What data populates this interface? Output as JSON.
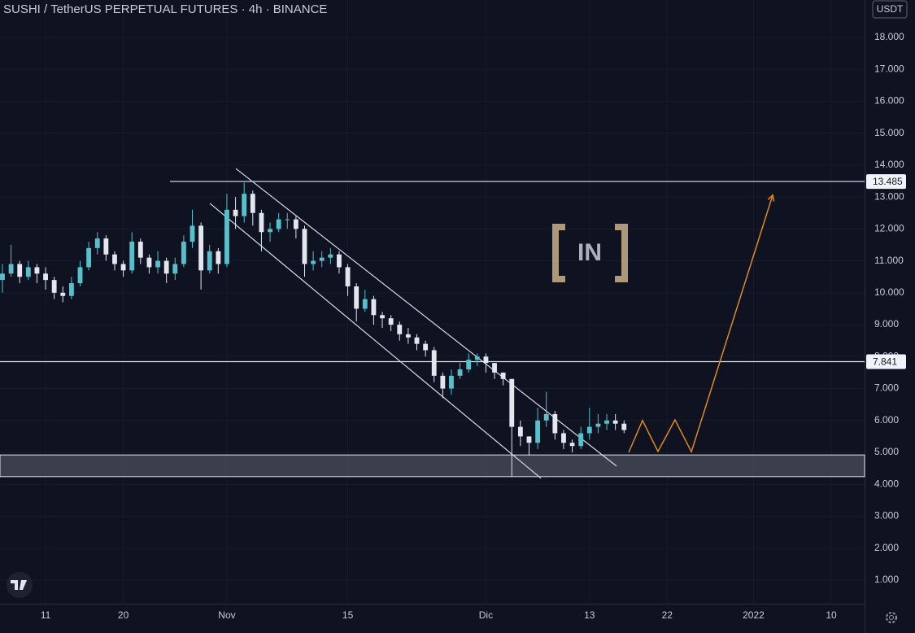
{
  "chart_data": {
    "type": "candlestick",
    "title": "SUSHI / TetherUS PERPETUAL FUTURES · 4h · BINANCE",
    "currency": "USDT",
    "watermark": "IN",
    "x": [
      6,
      7,
      8,
      9,
      10,
      11,
      12,
      13,
      14,
      15,
      16,
      17,
      18,
      19,
      20,
      21,
      22,
      23,
      24,
      25,
      26,
      27,
      28,
      29,
      30,
      31,
      32,
      33,
      34,
      35,
      36,
      37,
      38,
      39,
      40,
      41,
      42,
      43,
      44,
      45,
      46,
      47,
      48,
      49,
      50,
      51,
      52,
      53,
      54,
      55,
      56,
      57,
      58,
      59,
      60,
      61,
      62,
      63,
      64,
      65,
      66,
      67,
      68,
      69,
      70,
      71,
      72,
      73,
      74,
      75,
      76,
      77,
      78
    ],
    "open": [
      10.4,
      10.6,
      10.9,
      10.5,
      10.8,
      10.6,
      10.4,
      10.0,
      9.9,
      10.3,
      10.8,
      11.4,
      11.7,
      11.2,
      10.9,
      10.7,
      11.6,
      11.1,
      10.8,
      11.0,
      10.6,
      10.9,
      11.6,
      12.1,
      10.7,
      11.3,
      10.9,
      12.6,
      12.4,
      13.1,
      12.5,
      11.9,
      12.0,
      12.3,
      12.3,
      12.0,
      10.9,
      11.0,
      11.1,
      11.2,
      10.8,
      10.2,
      9.5,
      9.8,
      9.3,
      9.2,
      9.0,
      8.7,
      8.6,
      8.4,
      8.2,
      7.4,
      7.0,
      7.4,
      7.6,
      7.9,
      8.0,
      7.8,
      7.5,
      7.3,
      5.8,
      5.5,
      5.3,
      6.0,
      6.2,
      5.6,
      5.3,
      5.2,
      5.6,
      5.8,
      5.9,
      6.0,
      5.9
    ],
    "high": [
      10.9,
      11.5,
      11.0,
      11.0,
      10.9,
      10.8,
      10.5,
      10.2,
      10.5,
      11.0,
      11.6,
      11.9,
      11.8,
      11.3,
      11.0,
      11.9,
      11.7,
      11.2,
      11.3,
      11.1,
      11.1,
      11.8,
      12.6,
      12.2,
      11.5,
      11.4,
      13.1,
      13.0,
      13.45,
      13.2,
      12.6,
      12.2,
      12.5,
      12.5,
      12.4,
      12.1,
      11.3,
      11.3,
      11.4,
      11.3,
      10.9,
      10.3,
      10.1,
      9.9,
      9.4,
      9.3,
      9.1,
      8.9,
      8.7,
      8.5,
      8.3,
      7.5,
      7.6,
      7.8,
      8.1,
      8.1,
      8.1,
      7.8,
      7.5,
      7.3,
      6.0,
      5.5,
      6.4,
      6.9,
      6.3,
      5.7,
      5.4,
      5.8,
      6.4,
      6.2,
      6.2,
      6.2,
      6.0
    ],
    "low": [
      10.0,
      10.5,
      10.3,
      10.4,
      10.3,
      10.1,
      9.8,
      9.7,
      9.8,
      10.2,
      10.7,
      11.2,
      11.0,
      10.7,
      10.5,
      10.6,
      10.9,
      10.6,
      10.6,
      10.3,
      10.4,
      10.8,
      11.4,
      10.1,
      10.6,
      10.6,
      10.8,
      12.0,
      12.2,
      12.1,
      11.3,
      11.6,
      11.9,
      12.0,
      11.7,
      10.5,
      10.7,
      10.8,
      10.9,
      10.6,
      9.9,
      9.1,
      9.4,
      9.0,
      8.9,
      8.8,
      8.5,
      8.4,
      8.2,
      8.0,
      7.2,
      6.7,
      6.8,
      7.3,
      7.5,
      7.7,
      7.5,
      7.3,
      7.1,
      4.25,
      5.2,
      4.9,
      5.1,
      5.8,
      5.4,
      5.1,
      5.0,
      5.1,
      5.4,
      5.6,
      5.7,
      5.7,
      5.6
    ],
    "close": [
      10.6,
      10.9,
      10.5,
      10.8,
      10.6,
      10.4,
      10.0,
      9.9,
      10.3,
      10.8,
      11.4,
      11.7,
      11.2,
      10.9,
      10.7,
      11.6,
      11.1,
      10.8,
      11.0,
      10.6,
      10.9,
      11.6,
      12.1,
      10.7,
      11.3,
      10.9,
      12.6,
      12.4,
      13.1,
      12.5,
      11.9,
      12.0,
      12.3,
      12.3,
      12.0,
      10.9,
      11.0,
      11.1,
      11.2,
      10.8,
      10.2,
      9.5,
      9.8,
      9.3,
      9.2,
      9.0,
      8.7,
      8.6,
      8.4,
      8.2,
      7.4,
      7.0,
      7.4,
      7.6,
      7.9,
      8.0,
      7.8,
      7.5,
      7.3,
      5.8,
      5.5,
      5.3,
      6.0,
      6.2,
      5.6,
      5.3,
      5.2,
      5.6,
      5.8,
      5.9,
      6.0,
      5.9,
      5.7
    ],
    "up_color": "#56c1cc",
    "down_color": "#e3e6ee",
    "xlim": [
      5.72,
      105.86
    ],
    "ylim": [
      0.26,
      19.17
    ],
    "xticks": [
      11,
      20,
      {
        "value": 32,
        "label": "Nov"
      },
      {
        "value": 46,
        "label": "15"
      },
      {
        "value": 62,
        "label": "Dic"
      },
      {
        "value": 74,
        "label": "13"
      },
      {
        "value": 83,
        "label": "22"
      },
      {
        "value": 93,
        "label": "2022"
      },
      {
        "value": 102,
        "label": "10"
      }
    ],
    "yticks": [
      {
        "value": 1,
        "label": "1.000"
      },
      {
        "value": 2,
        "label": "2.000"
      },
      {
        "value": 3,
        "label": "3.000"
      },
      {
        "value": 4,
        "label": "4.000"
      },
      {
        "value": 5,
        "label": "5.000"
      },
      {
        "value": 6,
        "label": "6.000"
      },
      {
        "value": 7,
        "label": "7.000"
      },
      {
        "value": 8,
        "label": "8.000"
      },
      {
        "value": 9,
        "label": "9.000"
      },
      {
        "value": 10,
        "label": "10.000"
      },
      {
        "value": 11,
        "label": "11.000"
      },
      {
        "value": 12,
        "label": "12.000"
      },
      {
        "value": 13,
        "label": "13.000"
      },
      {
        "value": 14,
        "label": "14.000"
      },
      {
        "value": 15,
        "label": "15.000"
      },
      {
        "value": 16,
        "label": "16.000"
      },
      {
        "value": 17,
        "label": "17.000"
      },
      {
        "value": 18,
        "label": "18.000"
      }
    ],
    "grid": true,
    "levels": [
      {
        "value": 13.485,
        "start": 25.41
      },
      {
        "value": 7.841,
        "start": 5.72
      }
    ],
    "zone": {
      "low": 4.24,
      "high": 4.92
    },
    "channel": [
      {
        "x": [
          33.04,
          77.13
        ],
        "y": [
          13.89,
          4.57
        ]
      },
      {
        "x": [
          30.03,
          68.37
        ],
        "y": [
          12.8,
          4.19
        ]
      }
    ],
    "projection": {
      "color": "#e08a1e",
      "x": [
        78.54,
        80.14,
        81.93,
        83.9,
        85.8,
        95.22
      ],
      "y": [
        5.0,
        6.0,
        5.03,
        6.02,
        5.02,
        13.06
      ]
    }
  }
}
